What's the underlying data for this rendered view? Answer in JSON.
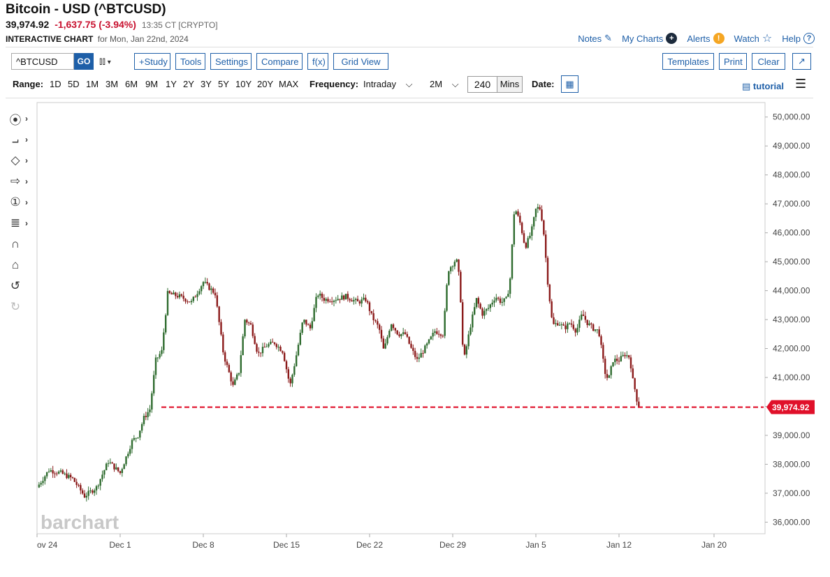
{
  "header": {
    "title": "Bitcoin - USD (^BTCUSD)",
    "last": "39,974.92",
    "change": "-1,637.75 (-3.94%)",
    "time": "13:35 CT [CRYPTO]",
    "chart_type": "INTERACTIVE CHART",
    "date_text": "for Mon, Jan 22nd, 2024"
  },
  "top_links": {
    "notes": "Notes",
    "my_charts": "My Charts",
    "alerts": "Alerts",
    "watch": "Watch",
    "help": "Help"
  },
  "toolbar": {
    "symbol_value": "^BTCUSD",
    "go": "GO",
    "study": "+Study",
    "tools": "Tools",
    "settings": "Settings",
    "compare": "Compare",
    "fx": "f(x)",
    "grid_view": "Grid View",
    "templates": "Templates",
    "print": "Print",
    "clear": "Clear"
  },
  "range_bar": {
    "range_label": "Range:",
    "ranges": [
      "1D",
      "5D",
      "1M",
      "3M",
      "6M",
      "9M",
      "1Y",
      "2Y",
      "3Y",
      "5Y",
      "10Y",
      "20Y",
      "MAX"
    ],
    "frequency_label": "Frequency:",
    "frequency_value": "Intraday",
    "period_value": "2M",
    "interval_value": "240",
    "interval_unit": "Mins",
    "date_label": "Date:",
    "tutorial": "tutorial"
  },
  "side_tools": [
    "crosshair-tool-icon",
    "trendline-tool-icon",
    "shape-tool-icon",
    "arrow-tool-icon",
    "annotation-tool-icon",
    "fibonacci-tool-icon",
    "magnet-icon",
    "lock-icon",
    "undo-icon",
    "redo-icon"
  ],
  "watermark": "barchart",
  "colors": {
    "up": "#2e6b2e",
    "down": "#8b1a1a",
    "price_line": "#e0102a",
    "link": "#1e5fa8"
  },
  "chart_data": {
    "type": "candlestick",
    "symbol": "^BTCUSD",
    "interval": "240 Mins",
    "ylim": [
      35600,
      50500
    ],
    "y_ticks": [
      36000,
      37000,
      38000,
      39000,
      40000,
      41000,
      42000,
      43000,
      44000,
      45000,
      46000,
      47000,
      48000,
      49000,
      50000
    ],
    "y_tick_labels": [
      "36,000.00",
      "37,000.00",
      "38,000.00",
      "39,000.00",
      "40,000.00",
      "41,000.00",
      "42,000.00",
      "43,000.00",
      "44,000.00",
      "45,000.00",
      "46,000.00",
      "47,000.00",
      "48,000.00",
      "49,000.00",
      "50,000.00"
    ],
    "x_ticks": [
      "ov 24",
      "Dec 1",
      "Dec 8",
      "Dec 15",
      "Dec 22",
      "Dec 29",
      "Jan 5",
      "Jan 12",
      "Jan 20"
    ],
    "x_tick_days": [
      0,
      7,
      14,
      21,
      28,
      35,
      42,
      49,
      57
    ],
    "last_price": 39974.92,
    "last_price_label": "39,974.92",
    "close_path": [
      [
        0,
        37200
      ],
      [
        1,
        37800
      ],
      [
        2,
        37700
      ],
      [
        3,
        37500
      ],
      [
        4,
        36900
      ],
      [
        5,
        37200
      ],
      [
        6,
        38100
      ],
      [
        6.5,
        37900
      ],
      [
        7,
        37700
      ],
      [
        8,
        38800
      ],
      [
        8.5,
        39000
      ],
      [
        9,
        39600
      ],
      [
        9.5,
        39900
      ],
      [
        10,
        41600
      ],
      [
        10.5,
        41900
      ],
      [
        11,
        43900
      ],
      [
        12,
        43800
      ],
      [
        13,
        43600
      ],
      [
        14,
        44300
      ],
      [
        15,
        43900
      ],
      [
        15.7,
        41800
      ],
      [
        16.5,
        40700
      ],
      [
        17,
        41200
      ],
      [
        17.5,
        43000
      ],
      [
        18,
        42800
      ],
      [
        18.6,
        41800
      ],
      [
        19.3,
        42100
      ],
      [
        20,
        42200
      ],
      [
        20.7,
        41900
      ],
      [
        21.3,
        40700
      ],
      [
        21.8,
        41700
      ],
      [
        22.4,
        43000
      ],
      [
        23,
        42700
      ],
      [
        23.6,
        43900
      ],
      [
        24.2,
        43700
      ],
      [
        25,
        43700
      ],
      [
        26,
        43800
      ],
      [
        27,
        43600
      ],
      [
        27.7,
        43700
      ],
      [
        28.2,
        43100
      ],
      [
        28.8,
        42700
      ],
      [
        29.2,
        41900
      ],
      [
        29.8,
        42900
      ],
      [
        30.4,
        42500
      ],
      [
        31,
        42500
      ],
      [
        31.5,
        42000
      ],
      [
        32,
        41600
      ],
      [
        32.8,
        42100
      ],
      [
        33.5,
        42600
      ],
      [
        34.2,
        42500
      ],
      [
        34.6,
        44700
      ],
      [
        35.3,
        45100
      ],
      [
        35.6,
        44300
      ],
      [
        35.9,
        41500
      ],
      [
        36.5,
        42800
      ],
      [
        37,
        43700
      ],
      [
        37.5,
        43200
      ],
      [
        38,
        43400
      ],
      [
        38.6,
        43800
      ],
      [
        39.1,
        43600
      ],
      [
        39.5,
        43700
      ],
      [
        39.8,
        44200
      ],
      [
        40.2,
        46900
      ],
      [
        40.7,
        46300
      ],
      [
        41.1,
        45500
      ],
      [
        41.6,
        46000
      ],
      [
        42,
        46800
      ],
      [
        42.3,
        46900
      ],
      [
        42.6,
        46300
      ],
      [
        43,
        44300
      ],
      [
        43.4,
        42800
      ],
      [
        43.9,
        42900
      ],
      [
        44.4,
        42700
      ],
      [
        44.9,
        42900
      ],
      [
        45.4,
        42600
      ],
      [
        45.9,
        43200
      ],
      [
        46.3,
        42900
      ],
      [
        46.8,
        42700
      ],
      [
        47.3,
        42600
      ],
      [
        47.8,
        41200
      ],
      [
        48.1,
        40900
      ],
      [
        48.5,
        41600
      ],
      [
        49,
        41600
      ],
      [
        49.5,
        41800
      ],
      [
        49.9,
        41700
      ],
      [
        50.2,
        40800
      ],
      [
        50.4,
        40500
      ],
      [
        50.6,
        39974.92
      ]
    ],
    "last_day": 50.6
  }
}
